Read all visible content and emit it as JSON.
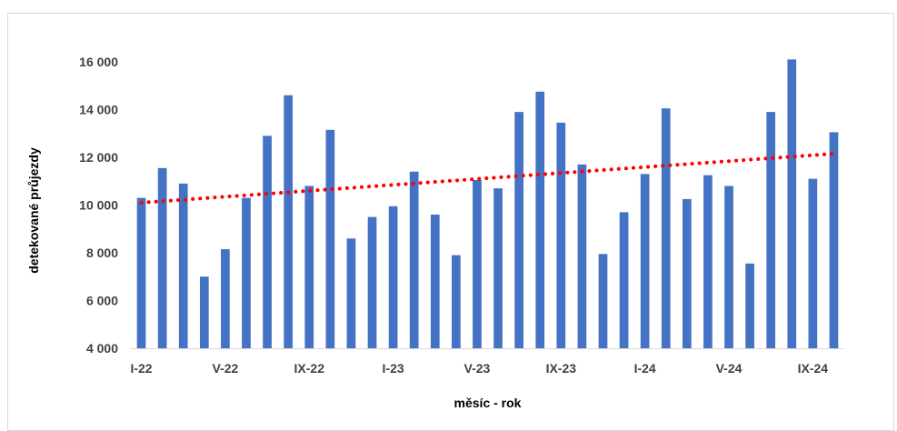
{
  "chart_data": {
    "type": "bar",
    "xlabel": "měsíc - rok",
    "ylabel": "detekované průjezdy",
    "ylim": [
      4000,
      16000
    ],
    "yticks": [
      4000,
      6000,
      8000,
      10000,
      12000,
      14000,
      16000
    ],
    "ytick_labels": [
      "4 000",
      "6 000",
      "8 000",
      "10 000",
      "12 000",
      "14 000",
      "16 000"
    ],
    "xtick_labels": [
      "I-22",
      "V-22",
      "IX-22",
      "I-23",
      "V-23",
      "IX-23",
      "I-24",
      "V-24",
      "IX-24"
    ],
    "xtick_every": 4,
    "values": [
      10300,
      11550,
      10900,
      7000,
      8150,
      10300,
      12900,
      14600,
      10800,
      13150,
      8600,
      9500,
      9950,
      11400,
      9600,
      7900,
      11050,
      10700,
      13900,
      14750,
      13450,
      11700,
      7950,
      9700,
      11300,
      14050,
      10250,
      11250,
      10800,
      7550,
      13900,
      16100,
      11100,
      13050
    ],
    "trendline": {
      "start": 10100,
      "end": 12150
    },
    "bar_color": "#4472c4",
    "trend_color": "#ff0000",
    "grid": false,
    "legend": "none"
  }
}
